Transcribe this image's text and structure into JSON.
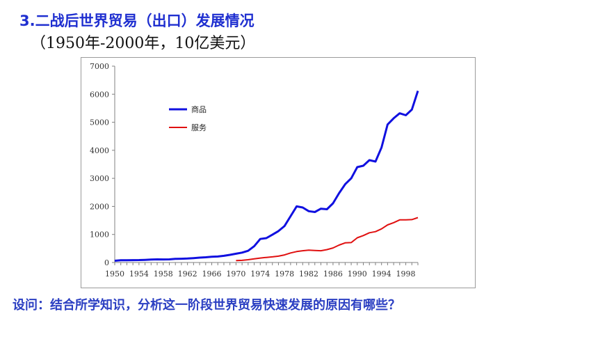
{
  "slide": {
    "heading": "3.二战后世界贸易（出口）发展情况",
    "subheading": "（1950年-2000年，10亿美元）",
    "question": "设问：结合所学知识，分析这一阶段世界贸易快速发展的原因有哪些？"
  },
  "colors": {
    "heading": "#1f2fd0",
    "goods": "#1010e0",
    "services": "#e01010"
  },
  "chart_data": {
    "type": "line",
    "x": [
      1950,
      1951,
      1952,
      1953,
      1954,
      1955,
      1956,
      1957,
      1958,
      1959,
      1960,
      1961,
      1962,
      1963,
      1964,
      1965,
      1966,
      1967,
      1968,
      1969,
      1970,
      1971,
      1972,
      1973,
      1974,
      1975,
      1976,
      1977,
      1978,
      1979,
      1980,
      1981,
      1982,
      1983,
      1984,
      1985,
      1986,
      1987,
      1988,
      1989,
      1990,
      1991,
      1992,
      1993,
      1994,
      1995,
      1996,
      1997,
      1998,
      1999,
      2000
    ],
    "xticks": [
      "1950",
      "1954",
      "1958",
      "1962",
      "1966",
      "1970",
      "1974",
      "1978",
      "1982",
      "1986",
      "1990",
      "1994",
      "1998"
    ],
    "yticks": [
      "0",
      "1000",
      "2000",
      "3000",
      "4000",
      "5000",
      "6000",
      "7000"
    ],
    "ylim": [
      0,
      7000
    ],
    "legend_position": "upper-left",
    "grid": false,
    "series": [
      {
        "name": "商品",
        "color": "#1010e0",
        "width": 3,
        "values": [
          62,
          82,
          80,
          84,
          86,
          94,
          104,
          112,
          108,
          112,
          128,
          134,
          142,
          157,
          174,
          187,
          204,
          214,
          239,
          273,
          314,
          352,
          418,
          580,
          840,
          870,
          990,
          1120,
          1300,
          1650,
          2000,
          1960,
          1830,
          1800,
          1920,
          1900,
          2110,
          2470,
          2790,
          3000,
          3400,
          3450,
          3650,
          3600,
          4100,
          4920,
          5140,
          5320,
          5250,
          5450,
          6120
        ]
      },
      {
        "name": "服务",
        "color": "#e01010",
        "width": 2,
        "values": [
          null,
          null,
          null,
          null,
          null,
          null,
          null,
          null,
          null,
          null,
          null,
          null,
          null,
          null,
          null,
          null,
          null,
          null,
          null,
          null,
          70,
          78,
          100,
          130,
          160,
          180,
          200,
          225,
          270,
          340,
          390,
          420,
          440,
          430,
          420,
          460,
          520,
          620,
          700,
          710,
          880,
          960,
          1060,
          1100,
          1200,
          1340,
          1420,
          1520,
          1520,
          1530,
          1600
        ]
      }
    ]
  }
}
